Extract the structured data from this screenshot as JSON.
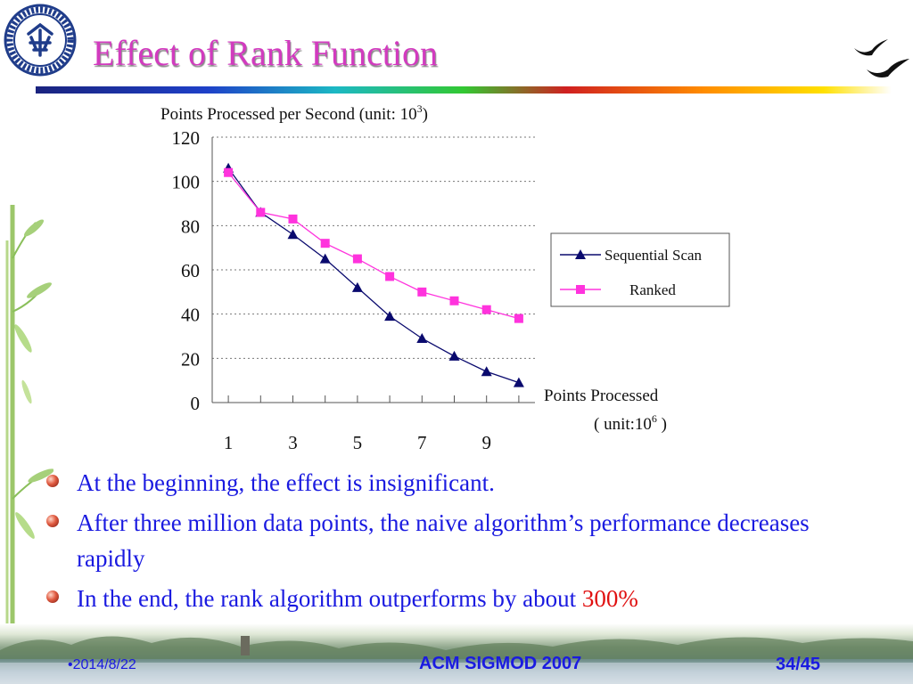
{
  "slide": {
    "title": "Effect of Rank Function",
    "bullets": [
      {
        "text": "At the beginning, the effect is insignificant."
      },
      {
        "text": "After three million data points, the naive algorithm’s performance decreases rapidly"
      },
      {
        "text": "In the end, the rank algorithm outperforms by about ",
        "highlight": "300%"
      }
    ],
    "footer": {
      "date": "•2014/8/22",
      "center": "ACM SIGMOD 2007",
      "page": "34/45"
    },
    "colors": {
      "title": "#d23bbf",
      "body_text": "#1a1ae0",
      "highlight": "#e01010"
    },
    "icons": [
      "university-logo-icon",
      "birds-icon",
      "bamboo-icon",
      "bullet-icon"
    ]
  },
  "chart_data": {
    "type": "line",
    "title": "Points Processed per Second (unit: 10",
    "title_sup": "3",
    "title_end": ")",
    "xlabel": "Points Processed",
    "xunit": "( unit:10",
    "xunit_sup": "6",
    "xunit_end": " )",
    "x": [
      1,
      2,
      3,
      4,
      5,
      6,
      7,
      8,
      9,
      10
    ],
    "xtick_labels": [
      "1",
      "3",
      "5",
      "7",
      "9"
    ],
    "xtick_values": [
      1,
      3,
      5,
      7,
      9
    ],
    "ylim": [
      0,
      120
    ],
    "yticks": [
      0,
      20,
      40,
      60,
      80,
      100,
      120
    ],
    "grid": true,
    "legend_position": "right",
    "series": [
      {
        "name": "Sequential Scan",
        "marker": "triangle",
        "color": "#0a0a6e",
        "values": [
          106,
          86,
          76,
          65,
          52,
          39,
          29,
          21,
          14,
          9
        ]
      },
      {
        "name": "Ranked",
        "marker": "square",
        "color": "#ff33dd",
        "values": [
          104,
          86,
          83,
          72,
          65,
          57,
          50,
          46,
          42,
          38
        ]
      }
    ]
  }
}
